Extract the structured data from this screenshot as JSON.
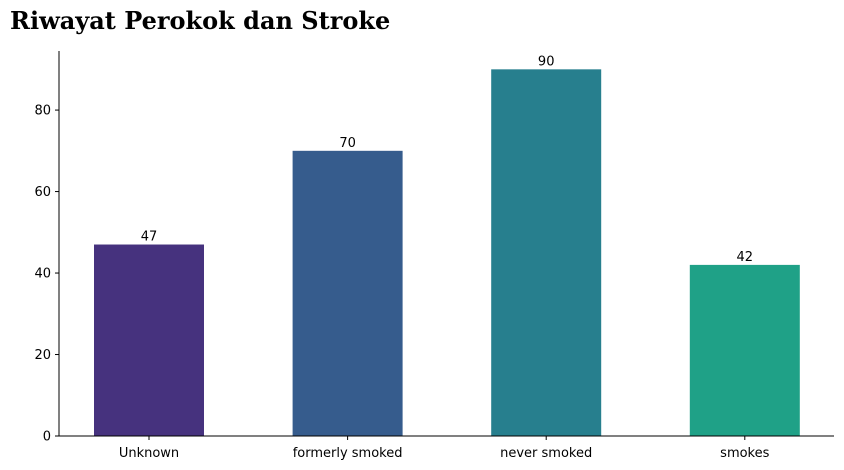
{
  "chart_data": {
    "type": "bar",
    "title": "Riwayat Perokok dan Stroke",
    "categories": [
      "Unknown",
      "formerly smoked",
      "never smoked",
      "smokes"
    ],
    "values": [
      47,
      70,
      90,
      42
    ],
    "data_labels": [
      "47",
      "70",
      "90",
      "42"
    ],
    "colors": [
      "#46327e",
      "#365c8d",
      "#277f8e",
      "#1fa187"
    ],
    "xlabel": "",
    "ylabel": "",
    "ylim": [
      0,
      94.5
    ],
    "y_ticks": [
      0,
      20,
      40,
      60,
      80
    ],
    "y_tick_labels": [
      "0",
      "20",
      "40",
      "60",
      "80"
    ],
    "grid": false,
    "legend": "none"
  }
}
